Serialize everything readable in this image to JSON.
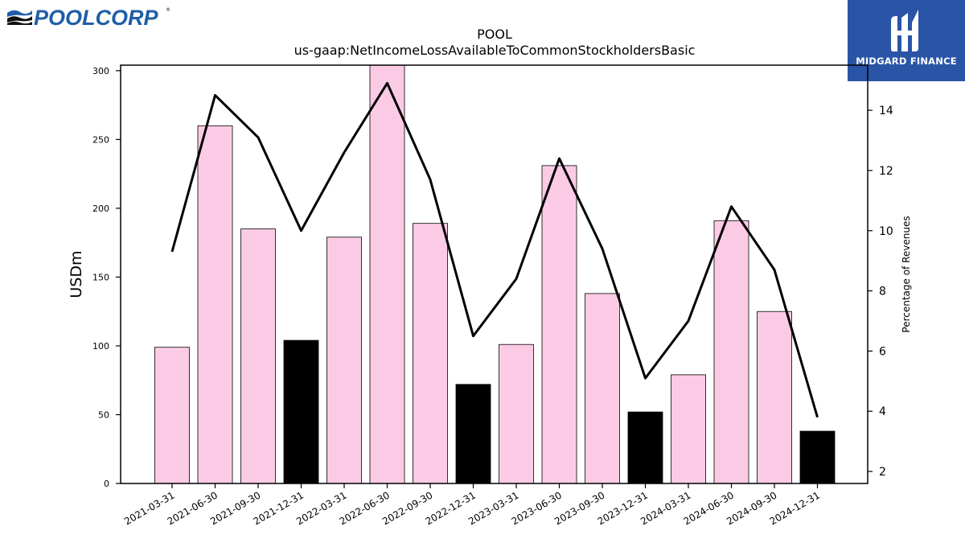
{
  "logos": {
    "left": {
      "text": "POOLCORP",
      "mark": "®"
    },
    "right": {
      "text": "MIDGARD FINANCE"
    }
  },
  "colors": {
    "bar_pink": "#fbcbe6",
    "bar_black": "#000000",
    "line": "#000000",
    "logo_blue": "#2a55a7",
    "poolcorp_blue": "#1f5ea8"
  },
  "chart_data": {
    "type": "bar",
    "title": "POOL",
    "subtitle": "us-gaap:NetIncomeLossAvailableToCommonStockholdersBasic",
    "ylabel": "USDm",
    "y2label": "Percentage of Revenues",
    "ylim": [
      0,
      304
    ],
    "y2lim": [
      1.6,
      15.5
    ],
    "yticks": [
      0,
      50,
      100,
      150,
      200,
      250,
      300
    ],
    "y2ticks": [
      2,
      4,
      6,
      8,
      10,
      12,
      14
    ],
    "categories": [
      "2021-03-31",
      "2021-06-30",
      "2021-09-30",
      "2021-12-31",
      "2022-03-31",
      "2022-06-30",
      "2022-09-30",
      "2022-12-31",
      "2023-03-31",
      "2023-06-30",
      "2023-09-30",
      "2023-12-31",
      "2024-03-31",
      "2024-06-30",
      "2024-09-30",
      "2024-12-31"
    ],
    "series": [
      {
        "type": "bar",
        "values": [
          99,
          260,
          185,
          104,
          179,
          305,
          189,
          72,
          101,
          231,
          138,
          52,
          79,
          191,
          125,
          38
        ],
        "colors": [
          "pink",
          "pink",
          "pink",
          "black",
          "pink",
          "pink",
          "pink",
          "black",
          "pink",
          "pink",
          "pink",
          "black",
          "pink",
          "pink",
          "pink",
          "black"
        ]
      },
      {
        "type": "line",
        "axis": "right",
        "values": [
          9.3,
          14.5,
          13.1,
          10.0,
          12.6,
          14.9,
          11.7,
          6.5,
          8.4,
          12.4,
          9.4,
          5.1,
          7.0,
          10.8,
          8.7,
          3.8
        ]
      }
    ],
    "grid": false
  }
}
